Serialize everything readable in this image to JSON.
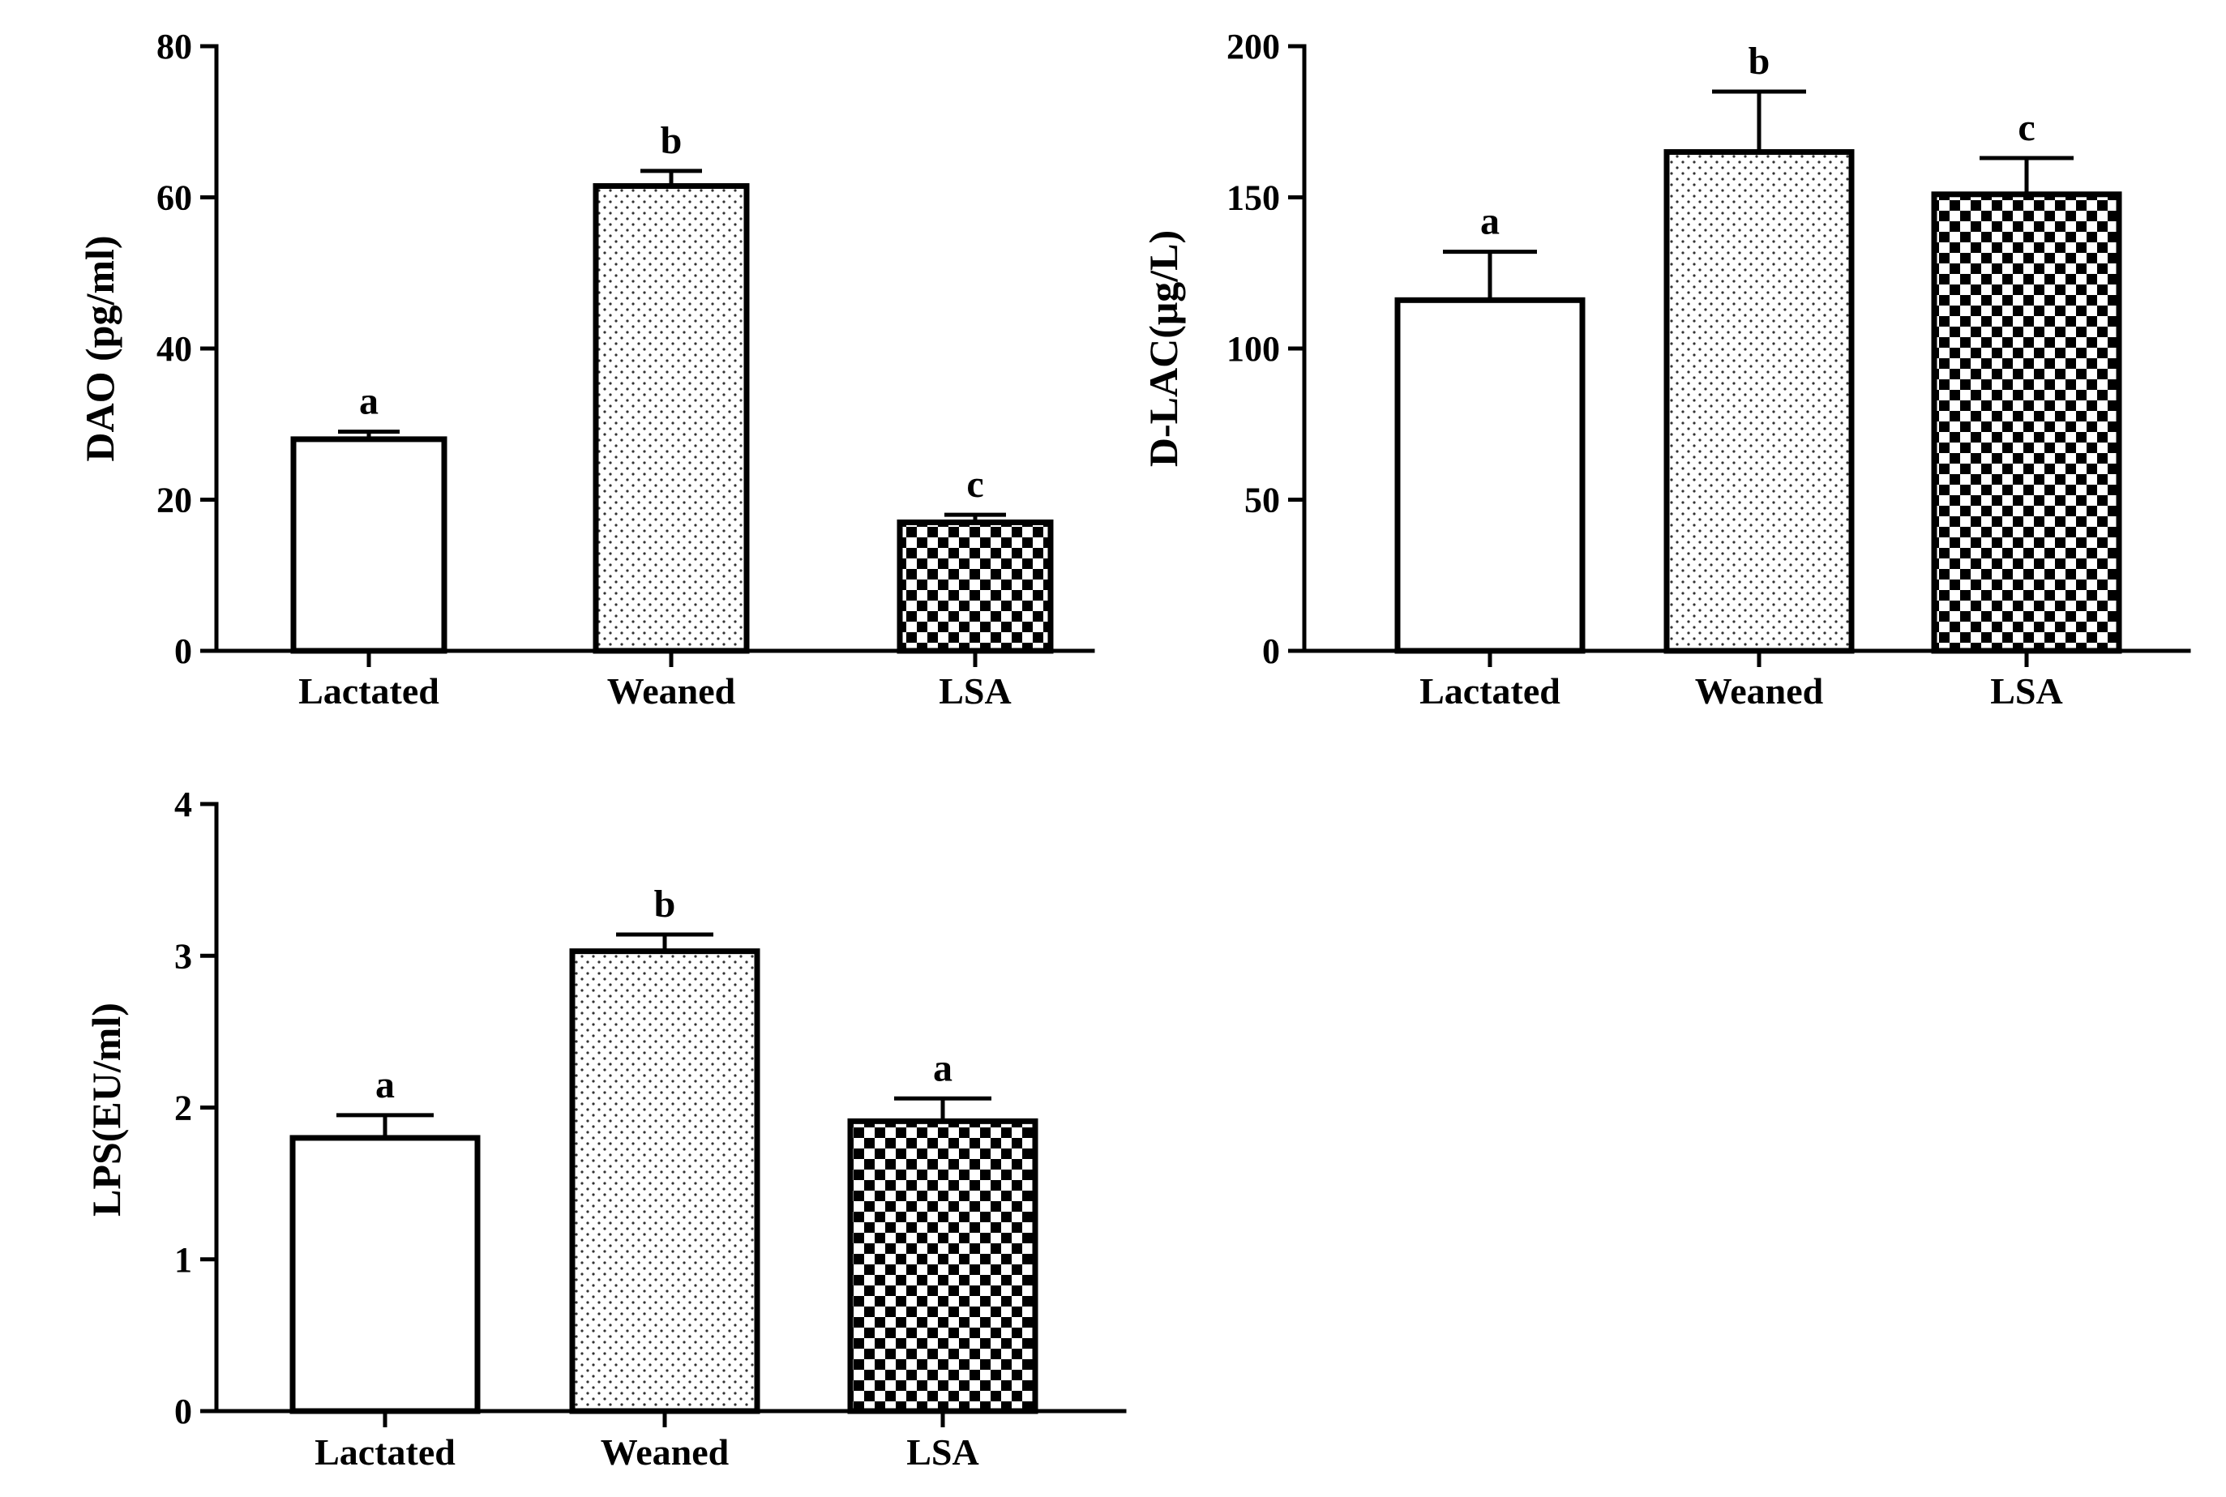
{
  "chart_data": [
    {
      "type": "bar",
      "ylabel": "DAO (pg/ml)",
      "xlabel": "",
      "categories": [
        "Lactated",
        "Weaned",
        "LSA"
      ],
      "values": [
        28,
        61.5,
        17
      ],
      "errors": [
        1,
        2,
        1
      ],
      "significance": [
        "a",
        "b",
        "c"
      ],
      "patterns": [
        "pattern-blank",
        "pattern-dots",
        "pattern-checker"
      ],
      "ylim": [
        0,
        80
      ],
      "yticks": [
        "0",
        "20",
        "40",
        "60",
        "80"
      ]
    },
    {
      "type": "bar",
      "ylabel": "D-LAC(μg/L)",
      "xlabel": "",
      "categories": [
        "Lactated",
        "Weaned",
        "LSA"
      ],
      "values": [
        116,
        165,
        151
      ],
      "errors": [
        16,
        20,
        12
      ],
      "significance": [
        "a",
        "b",
        "c"
      ],
      "patterns": [
        "pattern-blank",
        "pattern-dots",
        "pattern-checker"
      ],
      "ylim": [
        0,
        200
      ],
      "yticks": [
        "0",
        "50",
        "100",
        "150",
        "200"
      ]
    },
    {
      "type": "bar",
      "ylabel": "LPS(EU/ml)",
      "xlabel": "",
      "categories": [
        "Lactated",
        "Weaned",
        "LSA"
      ],
      "values": [
        1.8,
        3.03,
        1.91
      ],
      "errors": [
        0.15,
        0.11,
        0.15
      ],
      "significance": [
        "a",
        "b",
        "a"
      ],
      "patterns": [
        "pattern-blank",
        "pattern-dots",
        "pattern-checker"
      ],
      "ylim": [
        0,
        4
      ],
      "yticks": [
        "0",
        "1",
        "2",
        "3",
        "4"
      ]
    }
  ]
}
